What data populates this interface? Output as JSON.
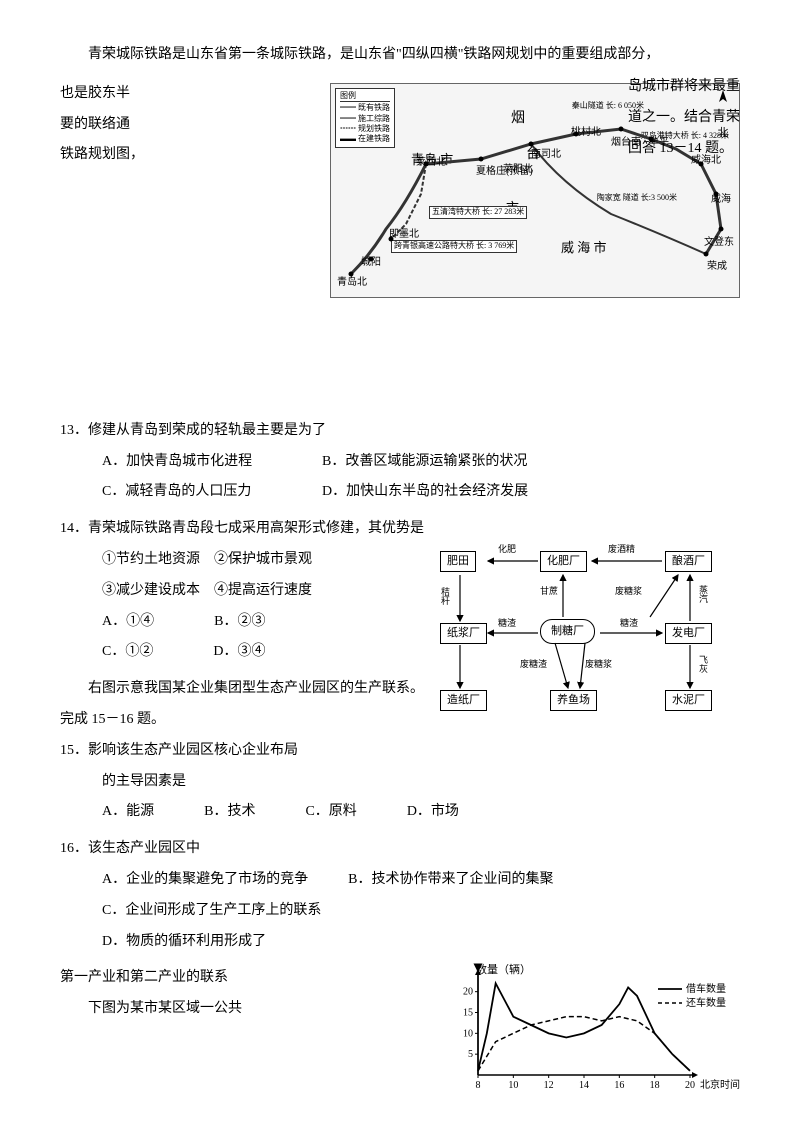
{
  "intro": {
    "line1": "青荣城际铁路是山东省第一条城际铁路，是山东省\"四纵四横\"铁路网规划中的重要组成部分，",
    "line2_left": "也是胶东半",
    "line2_right": "岛城市群将来最重",
    "line3_left": "要的联络通",
    "line3_right": "道之一。结合青荣",
    "line4_left": "铁路规划图，",
    "line4_right": "回答 13－14 题。"
  },
  "map": {
    "legend_title": "图例",
    "legend_items": [
      "既有铁路",
      "施工综路",
      "规划铁路",
      "在建铁路"
    ],
    "north": "北",
    "labels": {
      "yantai": "烟",
      "qingdao_shi_1": "青岛    市",
      "tai": "台",
      "shi_mid": "市",
      "weihai_shi": "威 海    市",
      "tunnel": "秦山隧道 长: 6 050米",
      "shuangdao": "双岛港特大桥 长: 4 328米",
      "wuqing": "五清湾特大桥 长: 27 283米",
      "kuachong": "跨青银高速公路特大桥 长: 3 769米",
      "taojiakuan": "陶家宽 隧道 长:3 500米"
    },
    "stations": [
      "莱西北",
      "莱阳北",
      "海阳北",
      "桃村北",
      "烟台南",
      "牟平",
      "威海北",
      "威海",
      "文登东",
      "荣成",
      "即墨北",
      "城阳",
      "青岛北",
      "青岛西",
      "夏格庄(预留)",
      "南司北"
    ]
  },
  "q13": {
    "stem": "13．修建从青岛到荣成的轻轨最主要是为了",
    "optA": "A．加快青岛城市化进程",
    "optB": "B．改善区域能源运输紧张的状况",
    "optC": "C．减轻青岛的人口压力",
    "optD": "D．加快山东半岛的社会经济发展"
  },
  "q14": {
    "stem": "14．青荣城际铁路青岛段七成采用高架形式修建，其优势是",
    "item1": "①节约土地资源",
    "item2": "②保护城市景观",
    "item3": "③减少建设成本",
    "item4": "④提高运行速度",
    "optA": "A．①④",
    "optB": "B．②③",
    "optC": "C．①②",
    "optD": "D．③④"
  },
  "diagram_intro": "右图示意我国某企业集团型生态产业园区的生产联系。完成 15－16 题。",
  "diagram": {
    "boxes": {
      "feitian": "肥田",
      "huafei": "化肥厂",
      "niangjiu": "酿酒厂",
      "zhijiang": "纸浆厂",
      "zhitang": "制糖厂",
      "fadian": "发电厂",
      "zaozhi": "造纸厂",
      "yangyu": "养鱼场",
      "shuini": "水泥厂"
    },
    "edges": {
      "huafei_label": "化肥",
      "feijiujing": "废酒精",
      "jiegan": "秸秆",
      "ganzhe": "甘蔗",
      "feitangjiang": "废糖浆",
      "zhengqi": "蒸汽",
      "tangzha1": "糖渣",
      "tangzha2": "糖渣",
      "feitangzha": "废糖渣",
      "feitangjiang2": "废糖浆",
      "feihui": "飞灰"
    }
  },
  "q15": {
    "stem": "15．影响该生态产业园区核心企业布局",
    "stem2": "的主导因素是",
    "optA": "A．能源",
    "optB": "B．技术",
    "optC": "C．原料",
    "optD": "D．市场"
  },
  "q16": {
    "stem": "16．该生态产业园区中",
    "optA": "A．企业的集聚避免了市场的竞争",
    "optB": "B．技术协作带来了企业间的集聚",
    "optC": "C．企业间形成了生产工序上的联系",
    "optD": "D．物质的循环利用形成了"
  },
  "para_after": "第一产业和第二产业的联系",
  "chart_intro": "下图为某市某区域一公共",
  "chart": {
    "ylabel": "数量（辆）",
    "xlabel": "北京时间",
    "legend1": "借车数量",
    "legend2": "还车数量",
    "x_ticks": [
      8,
      10,
      12,
      14,
      16,
      18,
      20
    ],
    "y_ticks": [
      5,
      10,
      15,
      20
    ],
    "line_borrow": [
      [
        8,
        1
      ],
      [
        8.5,
        10
      ],
      [
        9,
        22
      ],
      [
        9.5,
        18
      ],
      [
        10,
        14
      ],
      [
        11,
        12
      ],
      [
        12,
        10
      ],
      [
        13,
        9
      ],
      [
        14,
        10
      ],
      [
        15,
        12
      ],
      [
        16,
        17
      ],
      [
        16.5,
        21
      ],
      [
        17,
        19
      ],
      [
        18,
        10
      ],
      [
        19,
        5
      ],
      [
        20,
        1
      ]
    ],
    "line_return": [
      [
        8,
        1
      ],
      [
        9,
        8
      ],
      [
        10,
        10
      ],
      [
        11,
        12
      ],
      [
        12,
        13
      ],
      [
        13,
        14
      ],
      [
        14,
        14
      ],
      [
        15,
        13
      ],
      [
        16,
        14
      ],
      [
        17,
        13
      ],
      [
        18,
        10
      ],
      [
        19,
        5
      ],
      [
        20,
        1
      ]
    ],
    "ylim": [
      0,
      24
    ],
    "xlim": [
      8,
      20
    ],
    "colors": {
      "axis": "#000000",
      "borrow": "#000000",
      "return": "#000000"
    }
  }
}
